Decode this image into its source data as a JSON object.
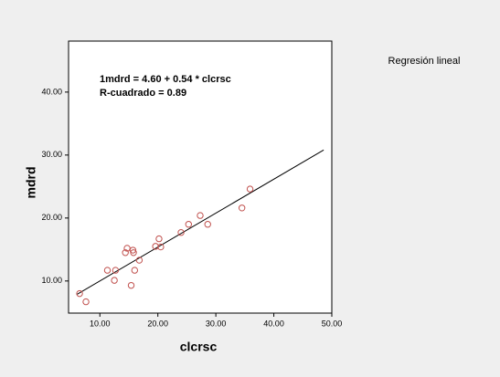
{
  "chart_data": {
    "type": "scatter",
    "x_label": "clcrsc",
    "y_label": "mdrd",
    "annotations": [
      "1mdrd = 4.60 + 0.54 * clcrsc",
      "R-cuadrado = 0.89"
    ],
    "xlim": [
      4.6,
      50
    ],
    "ylim": [
      4.9,
      48.1
    ],
    "xticks": [
      {
        "value": 10,
        "label": "10.00"
      },
      {
        "value": 20,
        "label": "20.00"
      },
      {
        "value": 30,
        "label": "30.00"
      },
      {
        "value": 40,
        "label": "40.00"
      },
      {
        "value": 50,
        "label": "50.00"
      }
    ],
    "yticks": [
      {
        "value": 10,
        "label": "10.00"
      },
      {
        "value": 20,
        "label": "20.00"
      },
      {
        "value": 30,
        "label": "30.00"
      },
      {
        "value": 40,
        "label": "40.00"
      }
    ],
    "series": [
      {
        "color": "#c0504d",
        "x": [
          6.5,
          7.6,
          11.3,
          12.7,
          12.5,
          14.4,
          14.7,
          15.7,
          15.8,
          15.4,
          16.0,
          16.8,
          19.6,
          20.2,
          20.5,
          24.0,
          25.3,
          27.3,
          28.6,
          34.5,
          35.9
        ],
        "values": [
          8.0,
          6.7,
          11.7,
          11.7,
          10.1,
          14.5,
          15.2,
          14.9,
          14.5,
          9.3,
          11.7,
          13.3,
          15.5,
          16.7,
          15.4,
          17.7,
          19.0,
          20.4,
          19.0,
          21.6,
          24.6
        ]
      }
    ],
    "fit_line": {
      "name": "Regresión lineal",
      "color": "#000000",
      "x": [
        6.1,
        48.6
      ],
      "values": [
        7.9,
        30.8
      ]
    }
  }
}
